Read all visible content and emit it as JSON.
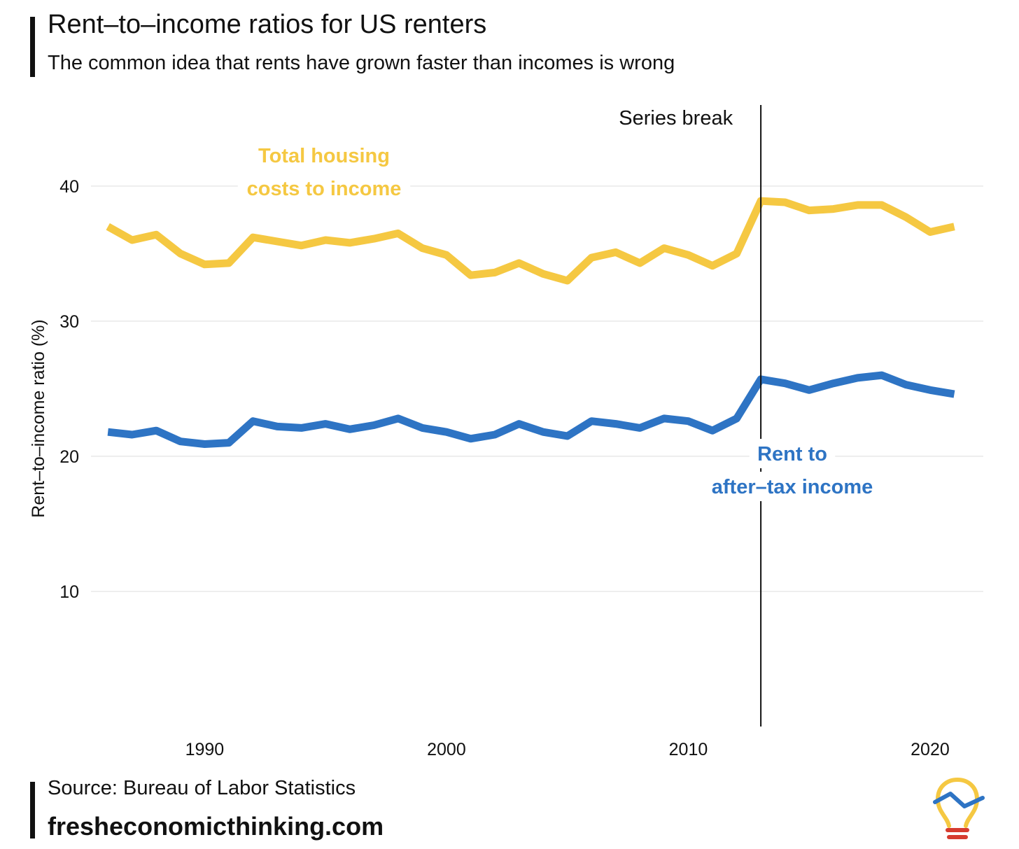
{
  "header": {
    "title": "Rent–to–income ratios for US renters",
    "subtitle": "The common idea that rents have grown faster than incomes is wrong"
  },
  "footer": {
    "source": "Source: Bureau of Labor Statistics",
    "site": "fresheconomicthinking.com"
  },
  "colors": {
    "total_housing": "#F5C842",
    "rent": "#2E74C4",
    "series_break_line": "#111111",
    "grid": "#DDDDDD",
    "logo_bulb": "#F5C842",
    "logo_line": "#2E74C4",
    "logo_base": "#D63B2F"
  },
  "logo": {
    "icon": "lightbulb-chart-icon"
  },
  "chart_data": {
    "type": "line",
    "title": "Rent–to–income ratios for US renters",
    "subtitle": "The common idea that rents have grown faster than incomes is wrong",
    "xlabel": "",
    "ylabel": "Rent–to–income ratio (%)",
    "xlim": [
      1985.3,
      2022.2
    ],
    "ylim": [
      0,
      46
    ],
    "xticks": [
      1990,
      2000,
      2010,
      2020
    ],
    "yticks": [
      10,
      20,
      30,
      40
    ],
    "grid": true,
    "legend": "none",
    "x": [
      1986,
      1987,
      1988,
      1989,
      1990,
      1991,
      1992,
      1993,
      1994,
      1995,
      1996,
      1997,
      1998,
      1999,
      2000,
      2001,
      2002,
      2003,
      2004,
      2005,
      2006,
      2007,
      2008,
      2009,
      2010,
      2011,
      2012,
      2013,
      2014,
      2015,
      2016,
      2017,
      2018,
      2019,
      2020,
      2021
    ],
    "series": [
      {
        "name": "Total housing costs to income",
        "label_lines": [
          "Total housing",
          "costs to income"
        ],
        "color_key": "total_housing",
        "values": [
          37.0,
          36.0,
          36.4,
          35.0,
          34.2,
          34.3,
          36.2,
          35.9,
          35.6,
          36.0,
          35.8,
          36.1,
          36.5,
          35.4,
          34.9,
          33.4,
          33.6,
          34.3,
          33.5,
          33.0,
          34.7,
          35.1,
          34.3,
          35.4,
          34.9,
          34.1,
          35.0,
          38.9,
          38.8,
          38.2,
          38.3,
          38.6,
          38.6,
          37.7,
          36.6,
          37.0
        ]
      },
      {
        "name": "Rent to after–tax income",
        "label_lines": [
          "Rent to",
          "after–tax income"
        ],
        "color_key": "rent",
        "values": [
          21.8,
          21.6,
          21.9,
          21.1,
          20.9,
          21.0,
          22.6,
          22.2,
          22.1,
          22.4,
          22.0,
          22.3,
          22.8,
          22.1,
          21.8,
          21.3,
          21.6,
          22.4,
          21.8,
          21.5,
          22.6,
          22.4,
          22.1,
          22.8,
          22.6,
          21.9,
          22.8,
          25.7,
          25.4,
          24.9,
          25.4,
          25.8,
          26.0,
          25.3,
          24.9,
          24.6
        ]
      }
    ],
    "annotations": [
      {
        "text": "Series break",
        "x": 2013
      }
    ]
  }
}
